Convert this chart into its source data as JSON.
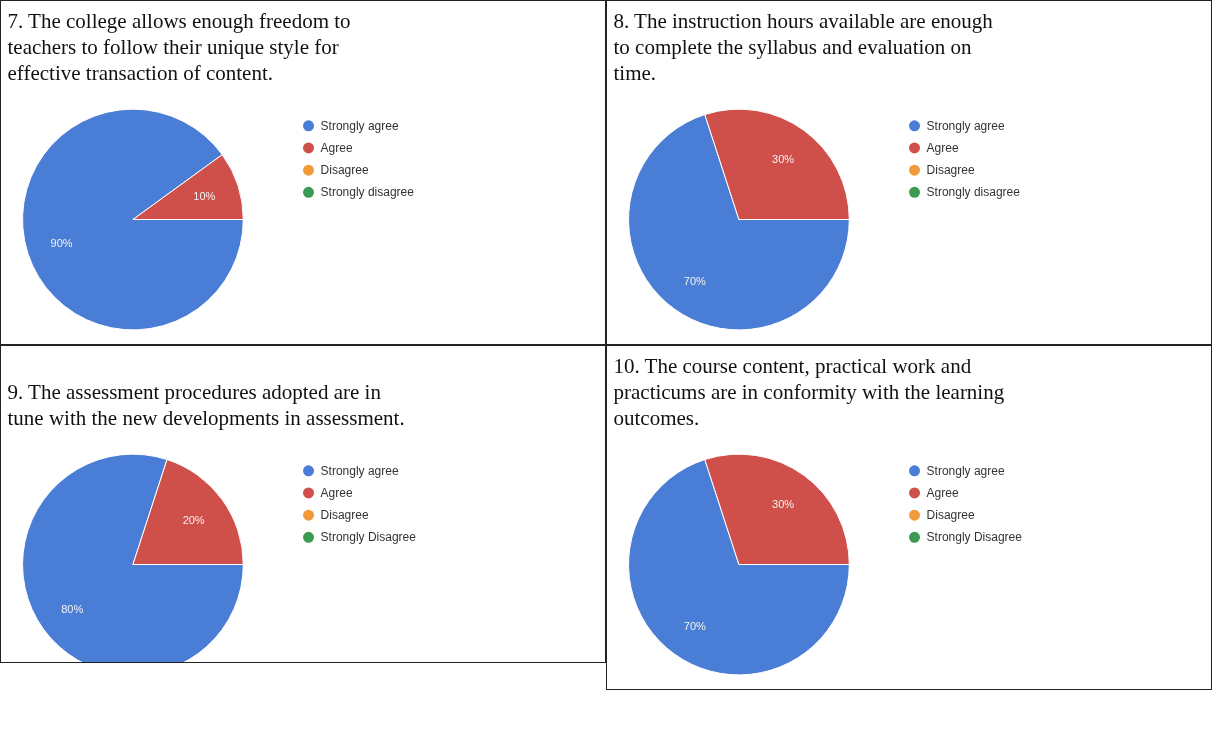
{
  "chart_data": [
    {
      "type": "pie",
      "title": "7. The college allows enough freedom to teachers to follow their unique style for effective transaction of content.",
      "categories": [
        "Strongly agree",
        "Agree",
        "Disagree",
        "Strongly disagree"
      ],
      "values": [
        90,
        10,
        0,
        0
      ],
      "value_labels": [
        "90%",
        "10%",
        null,
        null
      ],
      "colors": [
        "#4a7dd5",
        "#cf4f4a",
        "#f09a3a",
        "#3a9a52"
      ],
      "legend": "right"
    },
    {
      "type": "pie",
      "title": "8. The instruction hours available are enough to complete the syllabus and evaluation on time.",
      "categories": [
        "Strongly agree",
        "Agree",
        "Disagree",
        "Strongly disagree"
      ],
      "values": [
        70,
        30,
        0,
        0
      ],
      "value_labels": [
        "70%",
        "30%",
        null,
        null
      ],
      "colors": [
        "#4a7dd5",
        "#cf4f4a",
        "#f09a3a",
        "#3a9a52"
      ],
      "legend": "right"
    },
    {
      "type": "pie",
      "title": "9. The assessment procedures adopted are in tune with the new developments in assessment.",
      "categories": [
        "Strongly agree",
        "Agree",
        "Disagree",
        "Strongly Disagree"
      ],
      "values": [
        80,
        20,
        0,
        0
      ],
      "value_labels": [
        "80%",
        "20%",
        null,
        null
      ],
      "colors": [
        "#4a7dd5",
        "#cf4f4a",
        "#f09a3a",
        "#3a9a52"
      ],
      "legend": "right"
    },
    {
      "type": "pie",
      "title": "10. The course content, practical work and practicums are in conformity with the learning outcomes.",
      "categories": [
        "Strongly agree",
        "Agree",
        "Disagree",
        "Strongly Disagree"
      ],
      "values": [
        70,
        30,
        0,
        0
      ],
      "value_labels": [
        "70%",
        "30%",
        null,
        null
      ],
      "colors": [
        "#4a7dd5",
        "#cf4f4a",
        "#f09a3a",
        "#3a9a52"
      ],
      "legend": "right"
    }
  ]
}
